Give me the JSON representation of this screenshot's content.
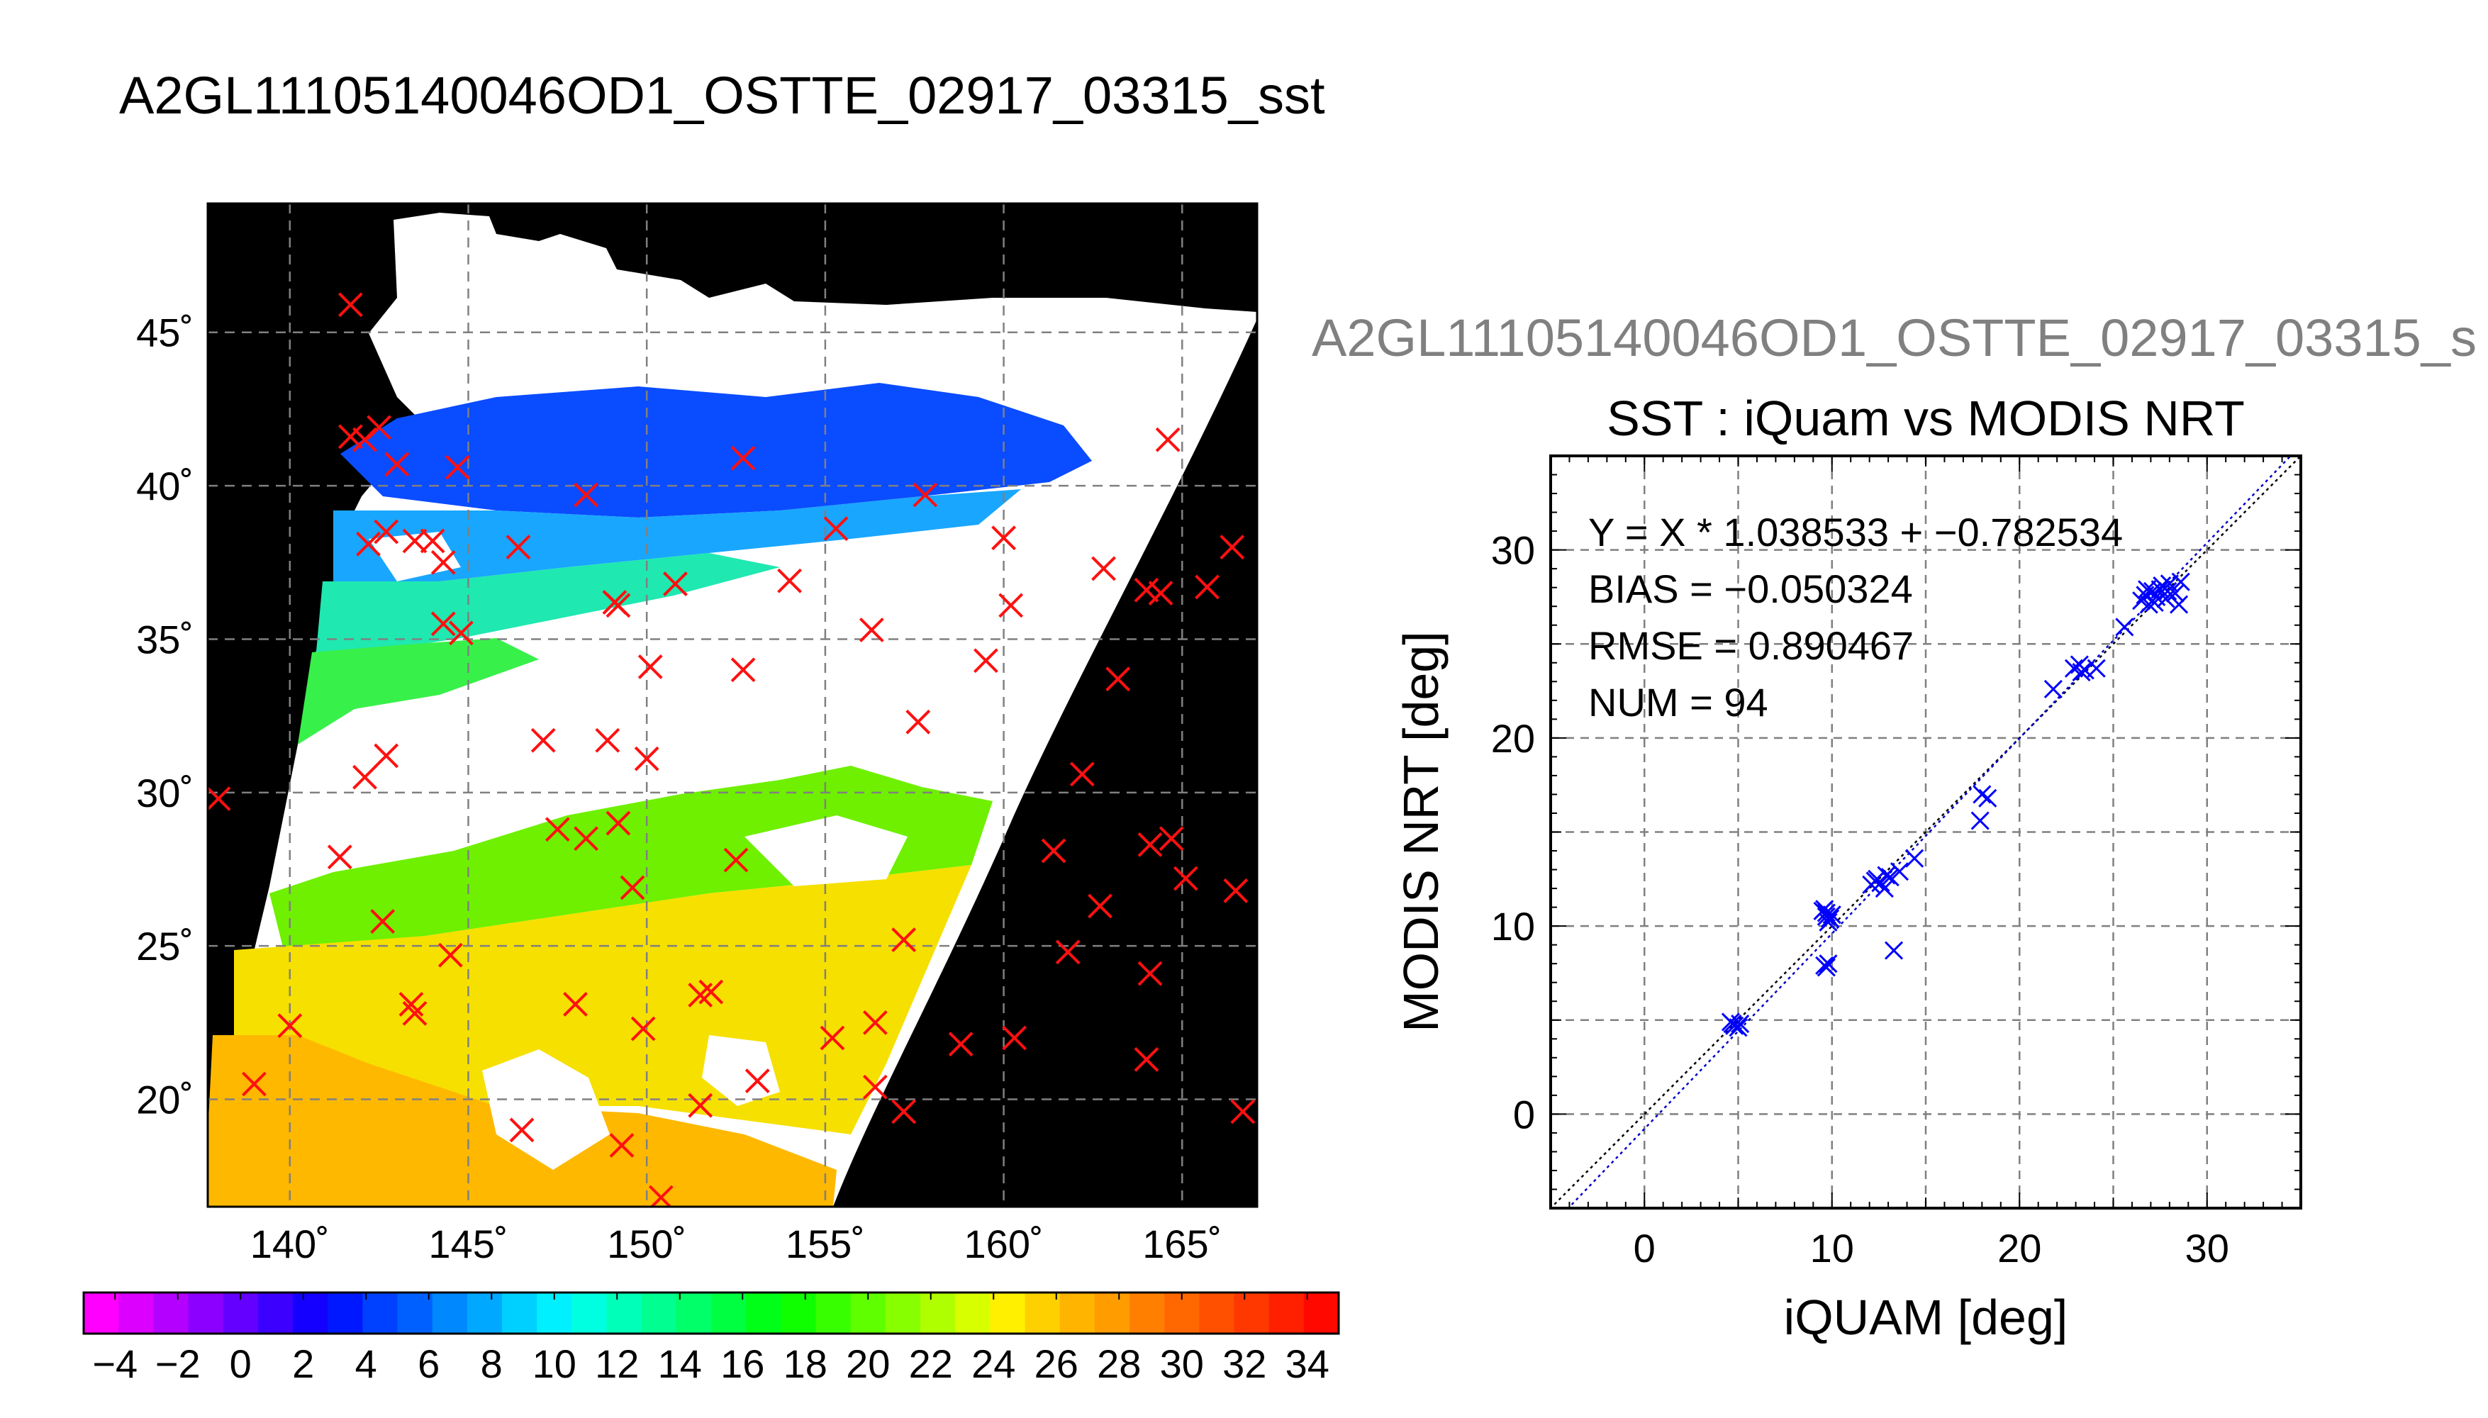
{
  "page_title": "A2GL11105140046OD1_OSTTE_02917_03315_sst",
  "chart_data": [
    {
      "type": "map",
      "id": "sst-map",
      "xlim": [
        137.7,
        167.1
      ],
      "ylim": [
        16.5,
        49.2
      ],
      "lon_ticks": [
        140,
        145,
        150,
        155,
        160,
        165
      ],
      "lat_ticks": [
        20,
        25,
        30,
        35,
        40,
        45
      ],
      "lon_tick_labels": [
        "140˚",
        "145˚",
        "150˚",
        "155˚",
        "160˚",
        "165˚"
      ],
      "lat_tick_labels": [
        "20˚",
        "25˚",
        "30˚",
        "35˚",
        "40˚",
        "45˚"
      ],
      "grid": true,
      "background": "#000000",
      "swath": {
        "lon_left_top": 142.6,
        "lon_right_top": 168.0,
        "lon_left_bottom": 137.5,
        "lon_right_bottom": 154.8
      },
      "matchup_points": [
        [
          141.7,
          41.6
        ],
        [
          142.1,
          41.5
        ],
        [
          142.5,
          41.9
        ],
        [
          143.0,
          40.7
        ],
        [
          144.7,
          40.6
        ],
        [
          148.3,
          39.7
        ],
        [
          152.7,
          40.9
        ],
        [
          157.8,
          39.7
        ],
        [
          142.2,
          38.1
        ],
        [
          142.7,
          38.5
        ],
        [
          143.5,
          38.2
        ],
        [
          144.0,
          38.2
        ],
        [
          144.3,
          37.5
        ],
        [
          146.4,
          38.0
        ],
        [
          149.2,
          36.1
        ],
        [
          150.8,
          36.8
        ],
        [
          154.0,
          36.9
        ],
        [
          155.3,
          38.6
        ],
        [
          160.0,
          38.3
        ],
        [
          144.3,
          35.5
        ],
        [
          144.8,
          35.2
        ],
        [
          149.1,
          36.2
        ],
        [
          150.1,
          34.1
        ],
        [
          152.7,
          34.0
        ],
        [
          156.3,
          35.3
        ],
        [
          159.5,
          34.3
        ],
        [
          160.2,
          36.1
        ],
        [
          147.1,
          31.7
        ],
        [
          148.9,
          31.7
        ],
        [
          150.0,
          31.1
        ],
        [
          142.7,
          31.2
        ],
        [
          142.1,
          30.5
        ],
        [
          141.4,
          27.9
        ],
        [
          147.5,
          28.8
        ],
        [
          148.3,
          28.5
        ],
        [
          149.2,
          29.0
        ],
        [
          149.6,
          26.9
        ],
        [
          152.5,
          27.8
        ],
        [
          157.6,
          32.3
        ],
        [
          142.6,
          25.8
        ],
        [
          143.4,
          23.1
        ],
        [
          143.5,
          22.8
        ],
        [
          144.5,
          24.7
        ],
        [
          148.0,
          23.1
        ],
        [
          149.9,
          22.3
        ],
        [
          151.5,
          23.4
        ],
        [
          151.8,
          23.5
        ],
        [
          155.2,
          22.0
        ],
        [
          156.4,
          22.5
        ],
        [
          157.2,
          25.2
        ],
        [
          139.0,
          20.5
        ],
        [
          140.0,
          22.4
        ],
        [
          146.5,
          19.0
        ],
        [
          149.3,
          18.5
        ],
        [
          150.4,
          16.8
        ],
        [
          151.5,
          19.8
        ],
        [
          153.1,
          20.6
        ],
        [
          156.4,
          20.4
        ],
        [
          157.2,
          19.6
        ],
        [
          158.8,
          21.8
        ],
        [
          160.3,
          22.0
        ],
        [
          161.8,
          24.8
        ],
        [
          162.7,
          26.3
        ],
        [
          164.1,
          24.1
        ],
        [
          164.0,
          21.3
        ],
        [
          163.2,
          33.7
        ],
        [
          162.2,
          30.6
        ],
        [
          161.4,
          28.1
        ],
        [
          164.1,
          28.3
        ],
        [
          164.7,
          28.5
        ],
        [
          165.1,
          27.2
        ],
        [
          166.5,
          26.8
        ],
        [
          162.8,
          37.3
        ],
        [
          164.0,
          36.6
        ],
        [
          164.4,
          36.5
        ],
        [
          165.7,
          36.7
        ],
        [
          166.4,
          38.0
        ],
        [
          164.6,
          41.5
        ],
        [
          138.0,
          29.8
        ],
        [
          141.7,
          45.9
        ],
        [
          166.7,
          19.6
        ]
      ],
      "colorbar": {
        "ticks": [
          -4,
          -2,
          0,
          2,
          4,
          6,
          8,
          10,
          12,
          14,
          16,
          18,
          20,
          22,
          24,
          26,
          28,
          30,
          32,
          34
        ],
        "tick_labels": [
          "−4",
          "−2",
          "0",
          "2",
          "4",
          "6",
          "8",
          "10",
          "12",
          "14",
          "16",
          "18",
          "20",
          "22",
          "24",
          "26",
          "28",
          "30",
          "32",
          "34"
        ],
        "range": [
          -5,
          35
        ],
        "colors": [
          "#ff00ff",
          "#dc00ff",
          "#b400ff",
          "#8c00ff",
          "#6400ff",
          "#3c00ff",
          "#1400ff",
          "#0018ff",
          "#0040ff",
          "#0060ff",
          "#0088ff",
          "#00a8ff",
          "#00d0ff",
          "#00f0ff",
          "#00ffe0",
          "#00ffb8",
          "#00ff90",
          "#00ff68",
          "#00ff40",
          "#00ff18",
          "#10ff00",
          "#38ff00",
          "#60ff00",
          "#88ff00",
          "#b0ff00",
          "#d8ff00",
          "#fff000",
          "#ffd000",
          "#ffb400",
          "#ff9c00",
          "#ff8000",
          "#ff6800",
          "#ff5000",
          "#ff3800",
          "#ff2000",
          "#ff0800"
        ]
      }
    },
    {
      "type": "scatter",
      "id": "sst-scatter",
      "subtitle": "A2GL11105140046OD1_OSTTE_02917_03315_s",
      "title": "SST : iQuam vs MODIS NRT",
      "xlabel": "iQUAM [deg]",
      "ylabel": "MODIS NRT [deg]",
      "xlim": [
        -5,
        35
      ],
      "ylim": [
        -5,
        35
      ],
      "xticks": [
        0,
        10,
        20,
        30
      ],
      "yticks": [
        0,
        10,
        20,
        30
      ],
      "grid": true,
      "stats": [
        "Y = X * 1.038533 + −0.782534",
        "BIAS = −0.050324",
        "RMSE = 0.890467",
        "NUM = 94"
      ],
      "fit_line": {
        "slope": 1.038533,
        "intercept": -0.782534,
        "color": "#0000cc"
      },
      "one_to_one_color": "#000000",
      "marker_color": "#0000ff",
      "points": [
        [
          4.6,
          4.9
        ],
        [
          4.8,
          4.7
        ],
        [
          5.0,
          4.6
        ],
        [
          4.7,
          4.8
        ],
        [
          5.1,
          4.8
        ],
        [
          9.5,
          10.8
        ],
        [
          9.7,
          10.5
        ],
        [
          9.8,
          10.2
        ],
        [
          9.6,
          10.9
        ],
        [
          10.0,
          10.6
        ],
        [
          9.7,
          10.7
        ],
        [
          9.9,
          10.4
        ],
        [
          9.6,
          7.9
        ],
        [
          9.8,
          8.0
        ],
        [
          9.7,
          7.8
        ],
        [
          12.1,
          12.2
        ],
        [
          12.4,
          12.5
        ],
        [
          12.6,
          12.3
        ],
        [
          12.8,
          12.0
        ],
        [
          13.1,
          12.6
        ],
        [
          13.6,
          12.9
        ],
        [
          12.3,
          12.4
        ],
        [
          13.3,
          8.7
        ],
        [
          14.4,
          13.6
        ],
        [
          12.9,
          12.7
        ],
        [
          17.9,
          15.6
        ],
        [
          18.0,
          17.0
        ],
        [
          18.3,
          16.8
        ],
        [
          21.8,
          22.6
        ],
        [
          22.9,
          23.7
        ],
        [
          23.2,
          23.9
        ],
        [
          23.5,
          23.6
        ],
        [
          24.1,
          23.7
        ],
        [
          23.3,
          23.5
        ],
        [
          25.6,
          25.9
        ],
        [
          26.5,
          27.3
        ],
        [
          26.7,
          27.6
        ],
        [
          26.9,
          27.1
        ],
        [
          27.1,
          27.8
        ],
        [
          27.3,
          27.5
        ],
        [
          27.5,
          27.9
        ],
        [
          27.6,
          28.1
        ],
        [
          27.8,
          27.4
        ],
        [
          28.0,
          28.2
        ],
        [
          28.3,
          27.7
        ],
        [
          28.5,
          27.1
        ],
        [
          28.6,
          28.3
        ],
        [
          26.8,
          27.9
        ],
        [
          27.2,
          27.2
        ],
        [
          27.9,
          27.8
        ]
      ]
    }
  ]
}
